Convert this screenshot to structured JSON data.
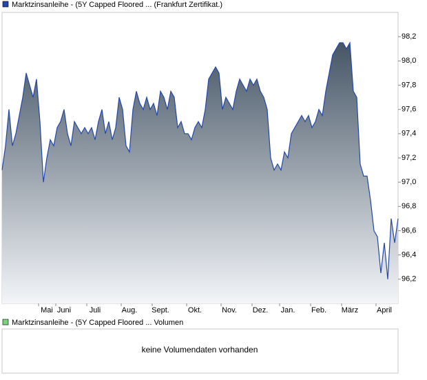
{
  "chart_data": {
    "type": "area",
    "series": [
      {
        "name": "Marktzinsanleihe - (5Y Capped Floored ... (Frankfurt Zertifikat.)",
        "color": "#2447a8",
        "values": [
          97.1,
          97.3,
          97.6,
          97.3,
          97.4,
          97.55,
          97.7,
          97.9,
          97.8,
          97.7,
          97.85,
          97.5,
          97.0,
          97.2,
          97.35,
          97.3,
          97.45,
          97.5,
          97.6,
          97.4,
          97.3,
          97.5,
          97.45,
          97.4,
          97.45,
          97.4,
          97.45,
          97.35,
          97.5,
          97.6,
          97.4,
          97.5,
          97.35,
          97.45,
          97.7,
          97.6,
          97.3,
          97.25,
          97.6,
          97.75,
          97.65,
          97.6,
          97.7,
          97.6,
          97.65,
          97.55,
          97.75,
          97.7,
          97.6,
          97.75,
          97.7,
          97.45,
          97.5,
          97.4,
          97.4,
          97.35,
          97.45,
          97.5,
          97.45,
          97.6,
          97.85,
          97.9,
          97.95,
          97.9,
          97.6,
          97.7,
          97.65,
          97.6,
          97.75,
          97.85,
          97.8,
          97.75,
          97.85,
          97.8,
          97.85,
          97.75,
          97.7,
          97.6,
          97.2,
          97.1,
          97.15,
          97.1,
          97.25,
          97.2,
          97.4,
          97.45,
          97.5,
          97.55,
          97.5,
          97.55,
          97.45,
          97.5,
          97.6,
          97.55,
          97.75,
          97.9,
          98.05,
          98.1,
          98.15,
          98.15,
          98.1,
          98.15,
          97.75,
          97.7,
          97.15,
          97.05,
          97.05,
          96.85,
          96.6,
          96.55,
          96.25,
          96.5,
          96.2,
          96.7,
          96.5,
          96.7
        ]
      }
    ],
    "categories": [
      null,
      null,
      null,
      null,
      null,
      null,
      null,
      null,
      null,
      null,
      null,
      null,
      null,
      "Mai",
      null,
      null,
      null,
      null,
      "Juni",
      null,
      null,
      null,
      null,
      null,
      null,
      null,
      null,
      "Juli",
      null,
      null,
      null,
      null,
      null,
      null,
      null,
      null,
      null,
      "Aug.",
      null,
      null,
      null,
      null,
      null,
      null,
      null,
      null,
      "Sept.",
      null,
      null,
      null,
      null,
      null,
      null,
      null,
      null,
      null,
      "Okt.",
      null,
      null,
      null,
      null,
      null,
      null,
      null,
      null,
      null,
      "Nov.",
      null,
      null,
      null,
      null,
      null,
      null,
      null,
      null,
      "Dez.",
      null,
      null,
      null,
      null,
      null,
      null,
      null,
      "Jan.",
      null,
      null,
      null,
      null,
      null,
      null,
      null,
      null,
      "Feb.",
      null,
      null,
      null,
      null,
      null,
      null,
      null,
      null,
      "März",
      null,
      null,
      null,
      null,
      null,
      null,
      null,
      null,
      null,
      "April",
      null,
      null,
      null,
      null
    ],
    "ylim": [
      96.0,
      98.4
    ],
    "yticks": [
      {
        "value": 96.2,
        "label": "96,2"
      },
      {
        "value": 96.4,
        "label": "96,4"
      },
      {
        "value": 96.6,
        "label": "96,6"
      },
      {
        "value": 96.8,
        "label": "96,8"
      },
      {
        "value": 97.0,
        "label": "97,0"
      },
      {
        "value": 97.2,
        "label": "97,2"
      },
      {
        "value": 97.4,
        "label": "97,4"
      },
      {
        "value": 97.6,
        "label": "97,6"
      },
      {
        "value": 97.8,
        "label": "97,8"
      },
      {
        "value": 98.0,
        "label": "98,0"
      },
      {
        "value": 98.2,
        "label": "98,2"
      }
    ],
    "grid": false
  },
  "volume_panel": {
    "legend": "Marktzinsanleihe - (5Y Capped Floored ... Volumen",
    "legend_color": "#7ccf7c",
    "message": "keine Volumendaten vorhanden"
  }
}
